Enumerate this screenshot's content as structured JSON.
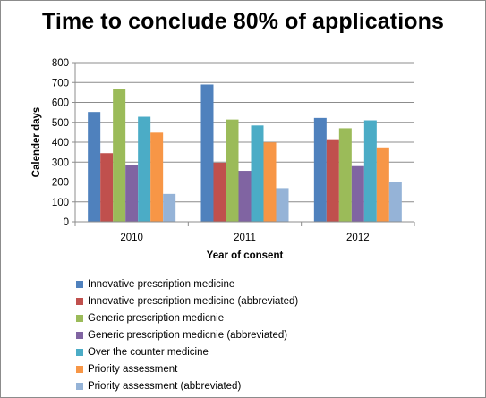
{
  "chart_data": {
    "type": "bar",
    "title": "Time to conclude 80% of applications",
    "xlabel": "Year of consent",
    "ylabel": "Calender days",
    "ylim": [
      0,
      800
    ],
    "yticks": [
      "0",
      "100",
      "200",
      "300",
      "400",
      "500",
      "600",
      "700",
      "800"
    ],
    "grid": true,
    "legend_position": "bottom",
    "categories": [
      "2010",
      "2011",
      "2012"
    ],
    "series": [
      {
        "name": "Innovative prescription medicine",
        "color": "#4f81bd",
        "values": [
          552,
          690,
          522
        ]
      },
      {
        "name": "Innovative prescription medicine (abbreviated)",
        "color": "#c0504d",
        "values": [
          345,
          297,
          415
        ]
      },
      {
        "name": "Generic prescription medicnie",
        "color": "#9bbb59",
        "values": [
          669,
          514,
          470
        ]
      },
      {
        "name": "Generic prescription medicnie (abbreviated)",
        "color": "#8064a2",
        "values": [
          284,
          256,
          280
        ]
      },
      {
        "name": "Over the counter medicine",
        "color": "#4bacc6",
        "values": [
          528,
          484,
          510
        ]
      },
      {
        "name": "Priority assessment",
        "color": "#f79646",
        "values": [
          448,
          399,
          374
        ]
      },
      {
        "name": "Priority assessment (abbreviated)",
        "color": "#95b3d7",
        "values": [
          140,
          169,
          199
        ]
      }
    ]
  }
}
